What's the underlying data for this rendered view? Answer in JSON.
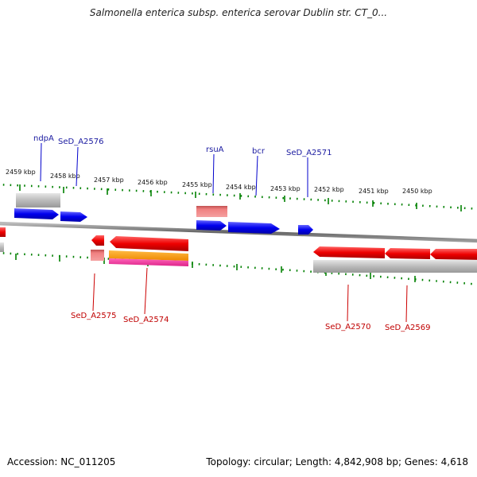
{
  "title": "Salmonella enterica subsp. enterica serovar Dublin str. CT_0...",
  "footer": {
    "accession": "Accession: NC_011205",
    "summary": "Topology: circular; Length: 4,842,908 bp; Genes: 4,618"
  },
  "kbp_ticks": [
    "2459 kbp",
    "2458 kbp",
    "2457 kbp",
    "2456 kbp",
    "2455 kbp",
    "2454 kbp",
    "2453 kbp",
    "2452 kbp",
    "2451 kbp",
    "2450 kbp"
  ],
  "forward_genes": [
    "ndpA",
    "SeD_A2576",
    "rsuA",
    "bcr",
    "SeD_A2571"
  ],
  "reverse_genes": [
    "SeD_A2575",
    "SeD_A2574",
    "SeD_A2570",
    "SeD_A2569"
  ],
  "colors": {
    "forward_gene": "#0000ee",
    "reverse_gene": "#ee0000",
    "backbone": "#888888",
    "tick": "#008000",
    "rna_pink": "#f08080",
    "orange_feature": "#ff9900",
    "magenta_feature": "#ff3399"
  }
}
